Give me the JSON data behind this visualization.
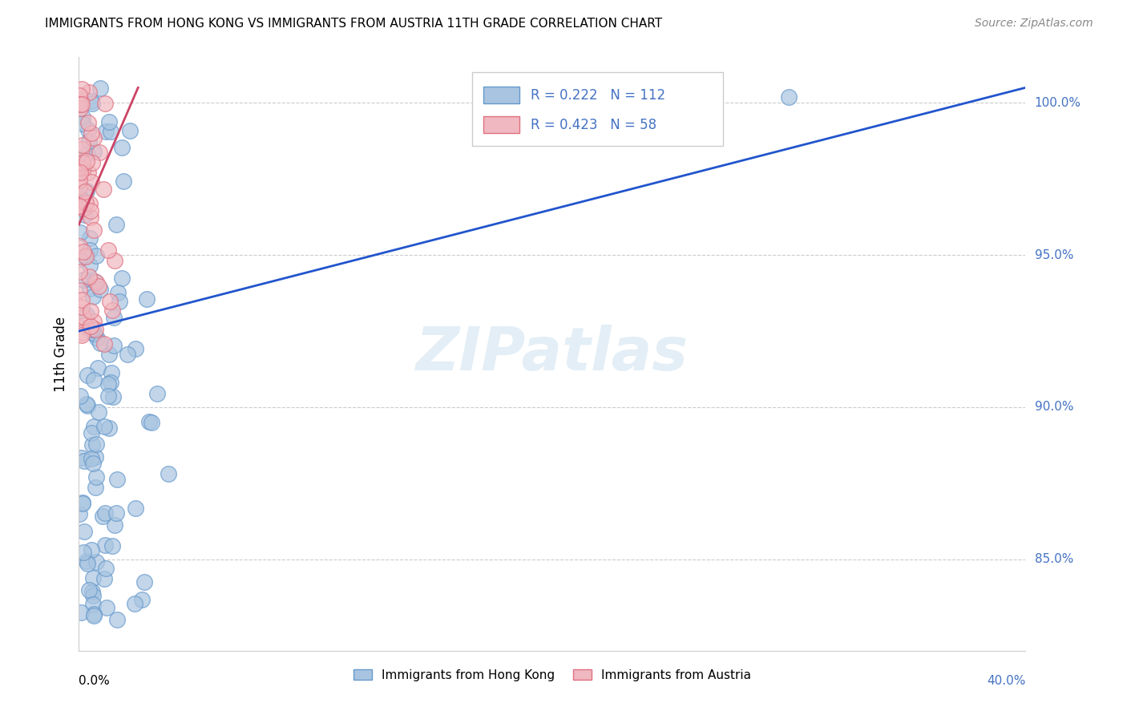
{
  "title": "IMMIGRANTS FROM HONG KONG VS IMMIGRANTS FROM AUSTRIA 11TH GRADE CORRELATION CHART",
  "source": "Source: ZipAtlas.com",
  "ylabel_label": "11th Grade",
  "xlim": [
    0.0,
    40.0
  ],
  "ylim": [
    82.0,
    101.5
  ],
  "hk_color": "#a8c4e0",
  "hk_edge_color": "#6699cc",
  "at_color": "#f0b8c0",
  "at_edge_color": "#e07080",
  "hk_line_color": "#2255cc",
  "at_line_color": "#cc4466",
  "R_hk": 0.222,
  "N_hk": 112,
  "R_at": 0.423,
  "N_at": 58,
  "grid_color": "#cccccc",
  "background_color": "#ffffff",
  "ytick_vals": [
    85.0,
    90.0,
    95.0,
    100.0
  ],
  "ytick_labels": [
    "85.0%",
    "90.0%",
    "95.0%",
    "100.0%"
  ],
  "watermark_text": "ZIPatlas",
  "legend_label_hk": "Immigrants from Hong Kong",
  "legend_label_at": "Immigrants from Austria",
  "hk_line_x": [
    0.0,
    40.0
  ],
  "hk_line_y": [
    92.5,
    100.5
  ],
  "at_line_x": [
    0.0,
    2.5
  ],
  "at_line_y": [
    96.0,
    100.5
  ]
}
